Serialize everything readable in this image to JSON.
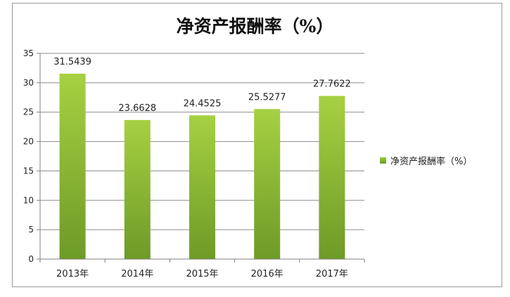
{
  "chart_data": {
    "type": "bar",
    "title": "净资产报酬率（%）",
    "categories": [
      "2013年",
      "2014年",
      "2015年",
      "2016年",
      "2017年"
    ],
    "series": [
      {
        "name": "净资产报酬率（%）",
        "values": [
          31.5439,
          23.6628,
          24.4525,
          25.5277,
          27.7622
        ],
        "labels": [
          "31.5439",
          "23.6628",
          "24.4525",
          "25.5277",
          "27.7622"
        ]
      }
    ],
    "ylim": [
      0,
      35
    ],
    "yticks": [
      "0",
      "5",
      "10",
      "15",
      "20",
      "25",
      "30",
      "35"
    ],
    "grid": true,
    "legend_position": "right",
    "colors": {
      "bar_top": "#a6d142",
      "bar_bottom": "#6e9a27",
      "grid": "#8c8c8c",
      "axis": "#7f7f7f"
    }
  }
}
